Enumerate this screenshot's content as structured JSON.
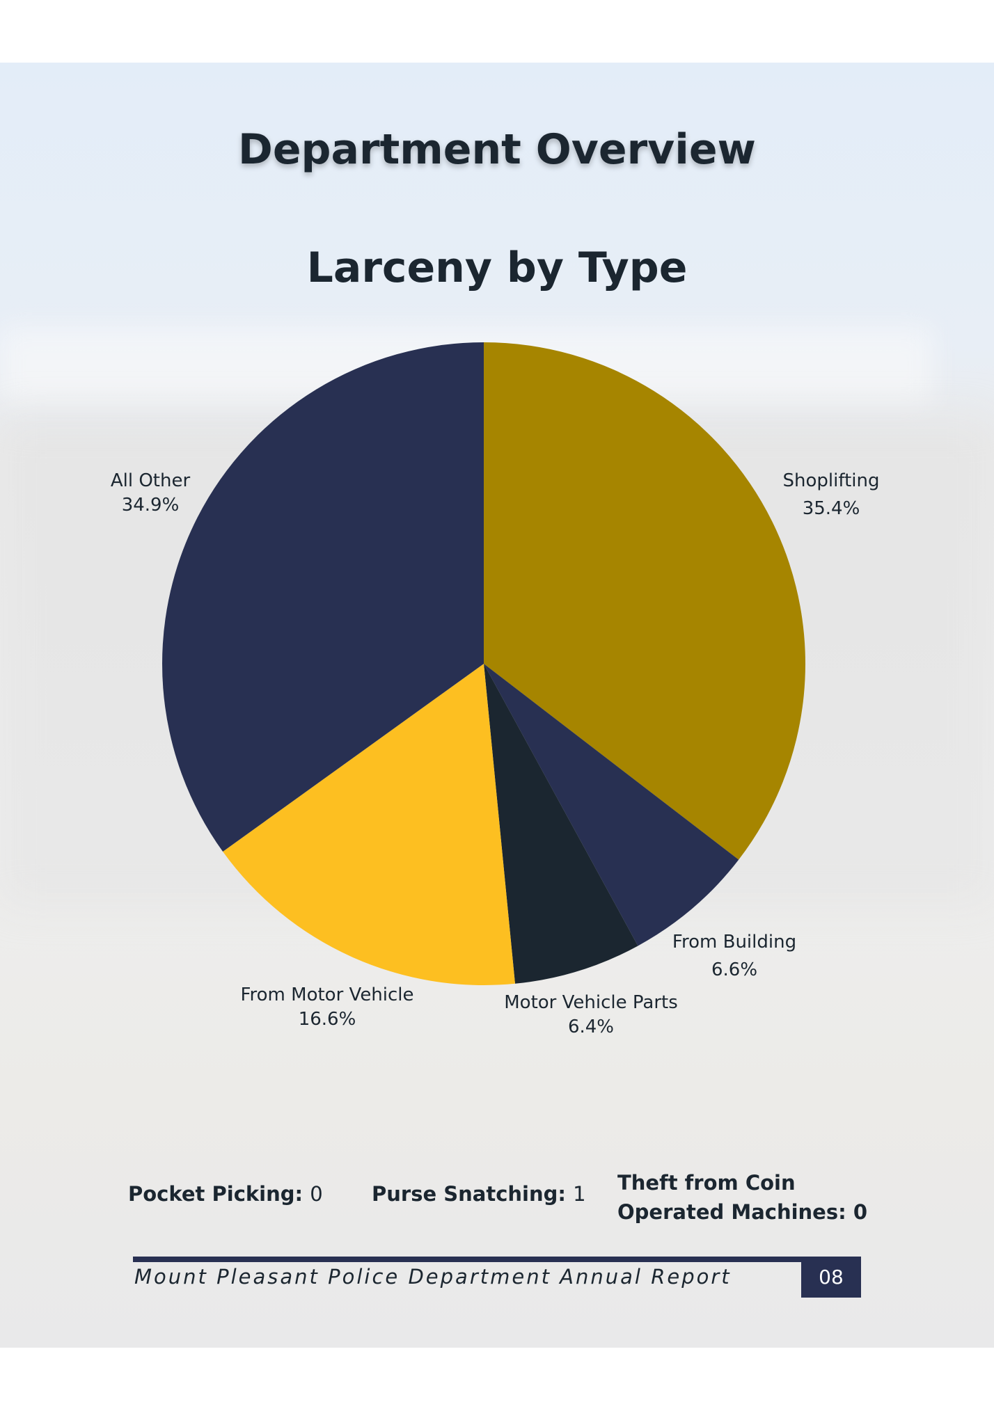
{
  "page": {
    "heading": "Department Overview",
    "footer_text": "Mount Pleasant Police Department Annual Report",
    "page_number": "08",
    "accent_color": "#283052"
  },
  "chart_data": {
    "type": "pie",
    "title": "Larceny by Type",
    "start": "top",
    "direction": "clockwise",
    "slices": [
      {
        "label": "Shoplifting",
        "value": 35.4,
        "display": "35.4%",
        "color": "#a68500"
      },
      {
        "label": "From Building",
        "value": 6.6,
        "display": "6.6%",
        "color": "#283052"
      },
      {
        "label": "Motor Vehicle Parts",
        "value": 6.4,
        "display": "6.4%",
        "color": "#1b2630"
      },
      {
        "label": "From Motor Vehicle",
        "value": 16.6,
        "display": "16.6%",
        "color": "#fdbf21"
      },
      {
        "label": "All Other",
        "value": 34.9,
        "display": "34.9%",
        "color": "#283052"
      }
    ]
  },
  "stats": [
    {
      "label": "Pocket Picking:",
      "value": "0"
    },
    {
      "label": "Purse Snatching:",
      "value": "1"
    },
    {
      "label_line1": "Theft from Coin",
      "label_line2": "Operated Machines:",
      "value": "0"
    }
  ]
}
